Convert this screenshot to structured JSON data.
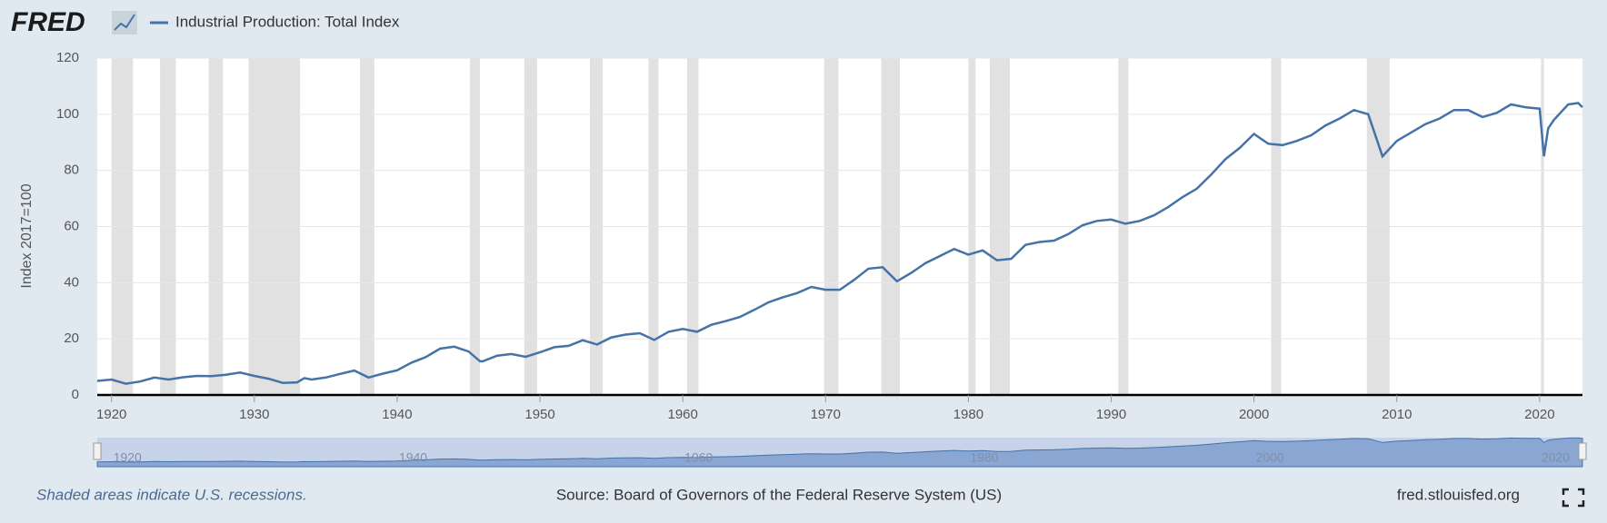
{
  "header": {
    "logo": "FRED"
  },
  "chart_data": {
    "type": "line",
    "y_label": "Index 2017=100",
    "x": [
      1919,
      1920,
      1921,
      1922,
      1923,
      1924,
      1925,
      1926,
      1927,
      1928,
      1929,
      1930,
      1931,
      1932,
      1933,
      1933.5,
      1934,
      1935,
      1936,
      1937,
      1938,
      1939,
      1940,
      1941,
      1942,
      1943,
      1944,
      1945,
      1945.8,
      1946,
      1947,
      1948,
      1949,
      1950,
      1951,
      1952,
      1953,
      1954,
      1955,
      1956,
      1957,
      1958,
      1959,
      1960,
      1961,
      1962,
      1963,
      1964,
      1965,
      1966,
      1967,
      1968,
      1969,
      1970,
      1971,
      1972,
      1973,
      1974,
      1975,
      1976,
      1977,
      1978,
      1979,
      1980,
      1981,
      1982,
      1983,
      1984,
      1985,
      1986,
      1987,
      1988,
      1989,
      1990,
      1991,
      1992,
      1993,
      1994,
      1995,
      1996,
      1997,
      1998,
      1999,
      2000,
      2001,
      2002,
      2003,
      2004,
      2005,
      2006,
      2007,
      2008,
      2009,
      2010,
      2011,
      2012,
      2013,
      2014,
      2015,
      2016,
      2017,
      2018,
      2019,
      2020,
      2020.3,
      2020.6,
      2021,
      2022,
      2022.7,
      2023
    ],
    "series": [
      {
        "name": "Industrial Production: Total Index",
        "color": "#4572a7",
        "values": [
          5,
          5.5,
          4.0,
          4.8,
          6.2,
          5.5,
          6.3,
          6.8,
          6.7,
          7.2,
          8.0,
          6.8,
          5.8,
          4.3,
          4.5,
          6,
          5.5,
          6.2,
          7.5,
          8.7,
          6.2,
          7.6,
          8.8,
          11.5,
          13.5,
          16.5,
          17.2,
          15.5,
          12,
          12,
          14,
          14.6,
          13.6,
          15.2,
          17,
          17.5,
          19.5,
          18,
          20.5,
          21.5,
          22,
          19.6,
          22.5,
          23.5,
          22.5,
          25,
          26.3,
          27.8,
          30.3,
          33,
          34.8,
          36.3,
          38.5,
          37.5,
          37.5,
          41,
          45,
          45.5,
          40.5,
          43.5,
          47,
          49.5,
          52,
          50,
          51.5,
          48,
          48.5,
          53.5,
          54.5,
          55,
          57.3,
          60.5,
          62,
          62.5,
          61,
          62,
          64,
          67,
          70.5,
          73.5,
          78.5,
          84,
          88,
          93,
          89.5,
          89,
          90.5,
          92.5,
          96,
          98.5,
          101.5,
          100,
          85,
          90.5,
          93.5,
          96.5,
          98.5,
          101.5,
          101.5,
          99,
          100.5,
          103.5,
          102.5,
          102,
          85,
          95,
          98,
          103.5,
          104,
          102.5
        ]
      }
    ],
    "recessions": [
      [
        1920.0,
        1921.5
      ],
      [
        1923.4,
        1924.5
      ],
      [
        1926.8,
        1927.8
      ],
      [
        1929.6,
        1933.2
      ],
      [
        1937.4,
        1938.4
      ],
      [
        1945.1,
        1945.8
      ],
      [
        1948.9,
        1949.8
      ],
      [
        1953.5,
        1954.4
      ],
      [
        1957.6,
        1958.3
      ],
      [
        1960.3,
        1961.1
      ],
      [
        1969.9,
        1970.9
      ],
      [
        1973.9,
        1975.2
      ],
      [
        1980.0,
        1980.5
      ],
      [
        1981.5,
        1982.9
      ],
      [
        1990.5,
        1991.2
      ],
      [
        2001.2,
        2001.9
      ],
      [
        2007.9,
        2009.5
      ],
      [
        2020.1,
        2020.3
      ]
    ],
    "xlim": [
      1919,
      2023
    ],
    "xticks": [
      1920,
      1930,
      1940,
      1950,
      1960,
      1970,
      1980,
      1990,
      2000,
      2010,
      2020
    ],
    "ylim": [
      0,
      120
    ],
    "yticks": [
      0,
      20,
      40,
      60,
      80,
      100,
      120
    ],
    "navigator_ticks": [
      1920,
      1940,
      1960,
      1980,
      2000,
      2020
    ],
    "grid": true
  },
  "footer": {
    "note": "Shaded areas indicate U.S. recessions.",
    "source": "Source: Board of Governors of the Federal Reserve System (US)",
    "site": "fred.stlouisfed.org"
  }
}
